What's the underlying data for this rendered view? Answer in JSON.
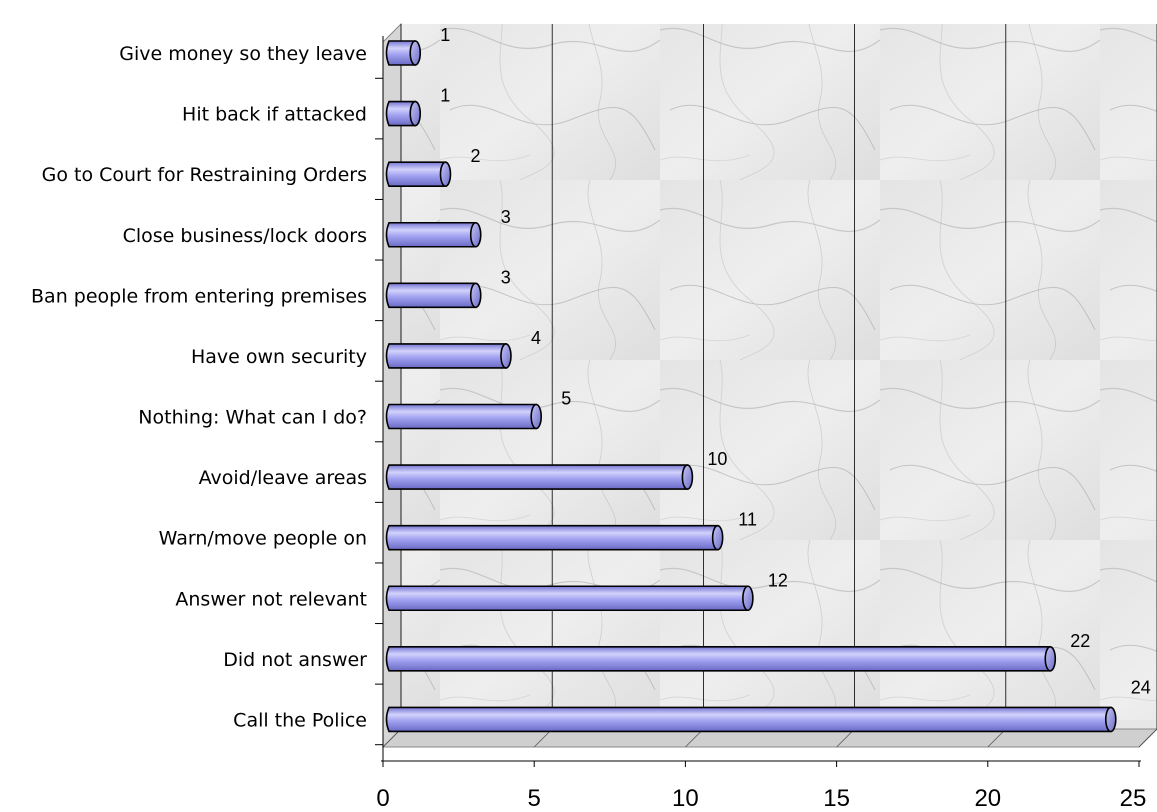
{
  "chart_data": {
    "type": "bar",
    "orientation": "horizontal",
    "style": "3d-cylinder",
    "title": "",
    "xlabel": "",
    "ylabel": "",
    "categories": [
      "Give money so they leave",
      "Hit back if attacked",
      "Go to Court for Restraining Orders",
      "Close business/lock doors",
      "Ban people from entering premises",
      "Have own security",
      "Nothing: What can I do?",
      "Avoid/leave areas",
      "Warn/move people on",
      "Answer not relevant",
      "Did not answer",
      "Call the Police"
    ],
    "values": [
      1,
      1,
      2,
      3,
      3,
      4,
      5,
      10,
      11,
      12,
      22,
      24
    ],
    "xlim": [
      0,
      25
    ],
    "xticks": [
      0,
      5,
      10,
      15,
      20,
      25
    ],
    "grid": "vertical",
    "legend": "none",
    "colors": {
      "bar_fill": "#9a9aee",
      "bar_highlight": "#d4d4fb",
      "bar_shadow": "#6c6cc8",
      "bar_outline": "#000000",
      "gridline": "#000000",
      "background": "marble-gray"
    }
  }
}
